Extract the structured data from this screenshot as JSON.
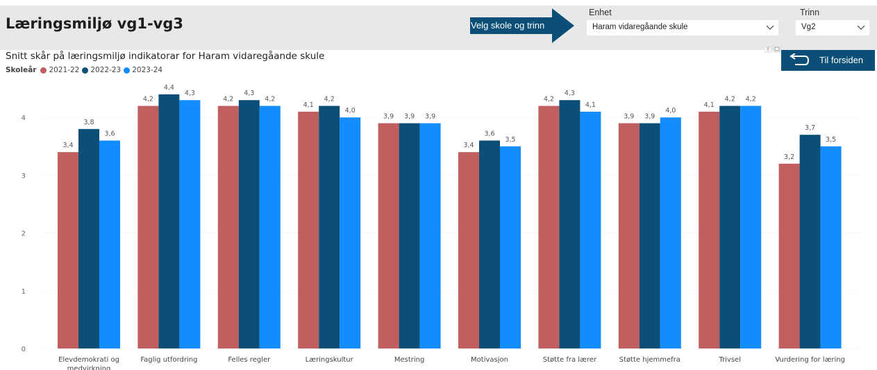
{
  "header": {
    "title": "Læringsmiljø vg1-vg3",
    "callout": "Velg skole og trinn",
    "enhet_label": "Enhet",
    "enhet_value": "Haram vidaregåande skule",
    "trinn_label": "Trinn",
    "trinn_value": "Vg2",
    "back_button": "Til forsiden"
  },
  "colors": {
    "header_bg": "#e8e8e8",
    "accent_dark": "#0b4f78",
    "series_2021": "#c15f5f",
    "series_2022": "#0b4f78",
    "series_2023": "#118dff"
  },
  "icons": [
    "arrow-right-icon",
    "chevron-down-icon",
    "filter-icon",
    "focus-icon",
    "undo-arrow-icon"
  ],
  "chart_data": {
    "type": "bar",
    "title": "Snitt skår på læringsmiljø indikatorar for Haram vidaregåande skule",
    "legend_title": "Skoleår",
    "legend_position": "top-left",
    "categories": [
      "Elevdemokrati og medvirkning",
      "Faglig utfordring",
      "Felles regler",
      "Læringskultur",
      "Mestring",
      "Motivasjon",
      "Støtte fra lærer",
      "Støtte hjemmefra",
      "Trivsel",
      "Vurdering for læring"
    ],
    "series": [
      {
        "name": "2021-22",
        "color": "#c15f5f",
        "values": [
          3.4,
          4.2,
          4.2,
          4.1,
          3.9,
          3.4,
          4.2,
          3.9,
          4.1,
          3.2
        ],
        "labels": [
          "3,4",
          "4,2",
          "4,2",
          "4,1",
          "3,9",
          "3,4",
          "4,2",
          "3,9",
          "4,1",
          "3,2"
        ]
      },
      {
        "name": "2022-23",
        "color": "#0b4f78",
        "values": [
          3.8,
          4.4,
          4.3,
          4.2,
          3.9,
          3.6,
          4.3,
          3.9,
          4.2,
          3.7
        ],
        "labels": [
          "3,8",
          "4,4",
          "4,3",
          "4,2",
          "3,9",
          "3,6",
          "4,3",
          "3,9",
          "4,2",
          "3,7"
        ]
      },
      {
        "name": "2023-24",
        "color": "#118dff",
        "values": [
          3.6,
          4.3,
          4.2,
          4.0,
          3.9,
          3.5,
          4.1,
          4.0,
          4.2,
          3.5
        ],
        "labels": [
          "3,6",
          "4,3",
          "4,2",
          "4,0",
          "3,9",
          "3,5",
          "4,1",
          "4,0",
          "4,2",
          "3,5"
        ]
      }
    ],
    "yticks": [
      "0",
      "1",
      "2",
      "3",
      "4"
    ],
    "ylim": [
      0,
      4.8
    ],
    "grid": true
  }
}
